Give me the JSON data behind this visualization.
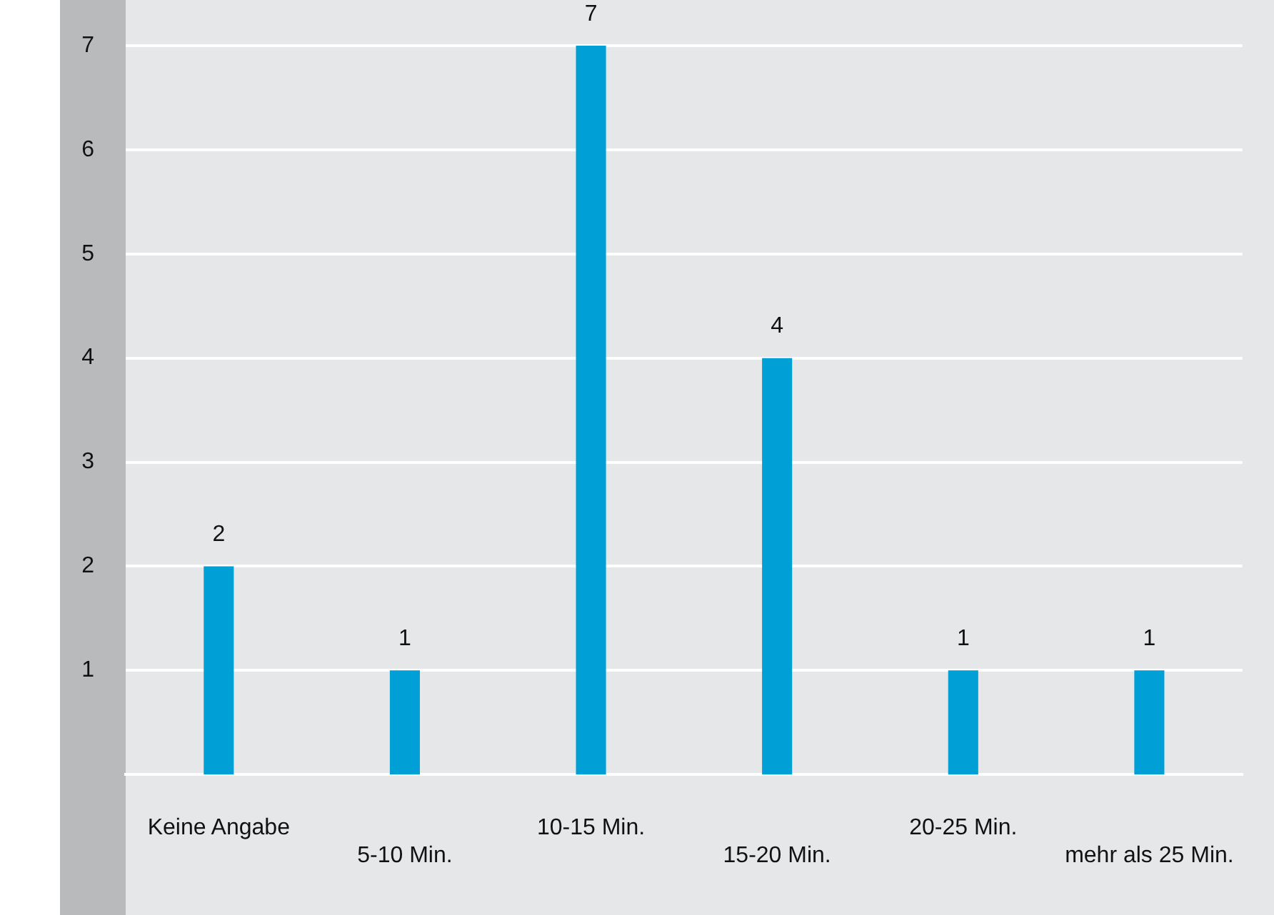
{
  "chart_data": {
    "type": "bar",
    "categories": [
      "Keine Angabe",
      "5-10 Min.",
      "10-15 Min.",
      "15-20 Min.",
      "20-25 Min.",
      "mehr als 25 Min."
    ],
    "values": [
      2,
      1,
      7,
      4,
      1,
      1
    ],
    "color": "#009fd6",
    "ylim": [
      0,
      7
    ],
    "yticks": [
      1,
      2,
      3,
      4,
      5,
      6,
      7
    ],
    "grid": "y",
    "legend": false,
    "data_labels": true
  }
}
